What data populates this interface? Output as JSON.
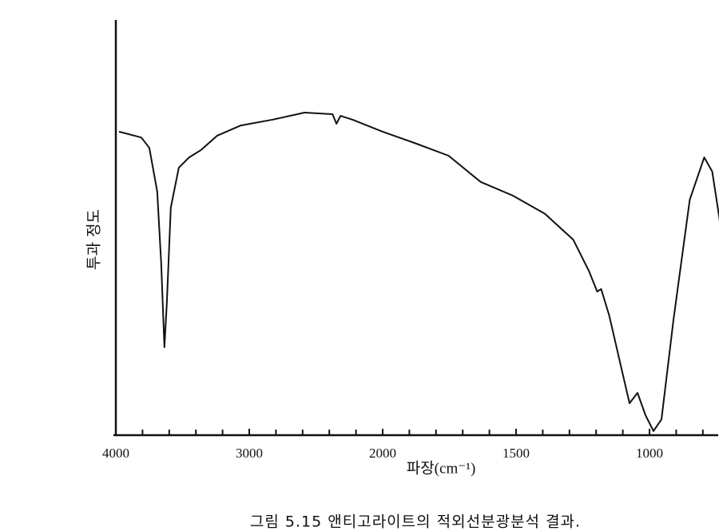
{
  "chart_data": {
    "type": "line",
    "caption": "그림 5.15  앤티고라이트의 적외선분광분석 결과.",
    "x_label": "파장(cm⁻¹)",
    "y_label": "투과 정도",
    "xlim": [
      4000,
      735
    ],
    "xticks": [
      4000,
      3000,
      2000,
      1500,
      1000
    ],
    "xminorticks": [
      3800,
      3600,
      3400,
      3200,
      2800,
      2600,
      2400,
      2200,
      1900,
      1800,
      1700,
      1600,
      1400,
      1300,
      1200,
      1100,
      900,
      800
    ],
    "ylim": [
      0,
      100
    ],
    "color": "#111111",
    "x": [
      3976,
      3809,
      3749,
      3690,
      3660,
      3636,
      3618,
      3588,
      3528,
      3451,
      3361,
      3242,
      3063,
      2824,
      2585,
      2376,
      2346,
      2316,
      2227,
      2000,
      1873,
      1753,
      1633,
      1512,
      1392,
      1286,
      1226,
      1196,
      1181,
      1151,
      1106,
      1075,
      1045,
      1015,
      985,
      955,
      910,
      849,
      795,
      765,
      735
    ],
    "values": [
      73.1,
      71.7,
      69.2,
      58.7,
      41.3,
      21.2,
      31.7,
      54.8,
      64.4,
      66.9,
      68.7,
      72.1,
      74.6,
      76.0,
      77.7,
      77.3,
      75.0,
      76.9,
      76.0,
      73.1,
      70.2,
      67.3,
      61.0,
      57.7,
      53.3,
      47.1,
      39.4,
      34.6,
      35.2,
      28.8,
      16.3,
      7.7,
      10.2,
      4.8,
      1.0,
      3.8,
      27.9,
      56.7,
      66.9,
      63.5,
      51.0
    ]
  }
}
